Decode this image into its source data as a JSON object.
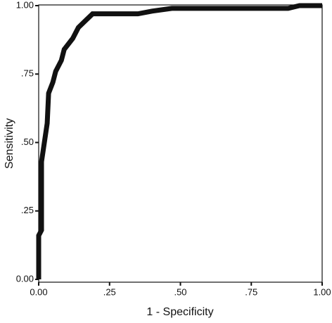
{
  "chart_data": {
    "type": "line",
    "xlabel": "1 - Specificity",
    "ylabel": "Sensitivity",
    "x": [
      0,
      0,
      0.01,
      0.01,
      0.02,
      0.03,
      0.035,
      0.05,
      0.06,
      0.08,
      0.09,
      0.12,
      0.14,
      0.17,
      0.19,
      0.35,
      0.4,
      0.47,
      0.88,
      0.92,
      1.0
    ],
    "values": [
      0,
      0.16,
      0.18,
      0.43,
      0.5,
      0.57,
      0.68,
      0.72,
      0.76,
      0.8,
      0.84,
      0.88,
      0.92,
      0.95,
      0.97,
      0.97,
      0.98,
      0.99,
      0.99,
      1.0,
      1.0
    ],
    "color": "#111111",
    "xlim": [
      0,
      1
    ],
    "ylim": [
      0,
      1
    ],
    "xticks": [
      {
        "value": 0,
        "label": "0.00"
      },
      {
        "value": 0.25,
        "label": ".25"
      },
      {
        "value": 0.5,
        "label": ".50"
      },
      {
        "value": 0.75,
        "label": ".75"
      },
      {
        "value": 1,
        "label": "1.00"
      }
    ],
    "yticks": [
      {
        "value": 0,
        "label": "0.00"
      },
      {
        "value": 0.25,
        "label": ".25"
      },
      {
        "value": 0.5,
        "label": ".50"
      },
      {
        "value": 0.75,
        "label": ".75"
      },
      {
        "value": 1,
        "label": "1.00"
      }
    ]
  }
}
